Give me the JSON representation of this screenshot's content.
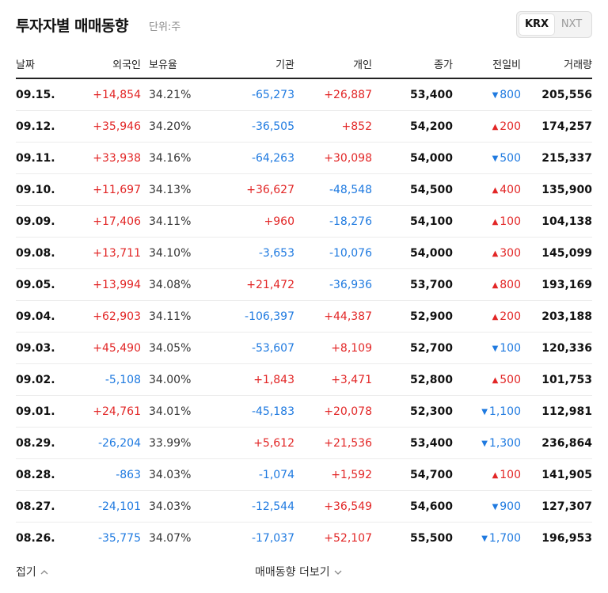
{
  "header": {
    "title": "투자자별 매매동향",
    "unit": "단위:주",
    "tabs": [
      {
        "label": "KRX",
        "active": true
      },
      {
        "label": "NXT",
        "active": false
      }
    ]
  },
  "columns": {
    "date": "날짜",
    "foreign": "외국인",
    "holding": "보유율",
    "inst": "기관",
    "indiv": "개인",
    "close": "종가",
    "change": "전일비",
    "volume": "거래량"
  },
  "colors": {
    "up": "#e22626",
    "down": "#1f7ae0"
  },
  "rows": [
    {
      "date": "09.15.",
      "foreign": "+14,854",
      "holding": "34.21%",
      "inst": "-65,273",
      "indiv": "+26,887",
      "close": "53,400",
      "change_dir": "down",
      "change": "800",
      "volume": "205,556"
    },
    {
      "date": "09.12.",
      "foreign": "+35,946",
      "holding": "34.20%",
      "inst": "-36,505",
      "indiv": "+852",
      "close": "54,200",
      "change_dir": "up",
      "change": "200",
      "volume": "174,257"
    },
    {
      "date": "09.11.",
      "foreign": "+33,938",
      "holding": "34.16%",
      "inst": "-64,263",
      "indiv": "+30,098",
      "close": "54,000",
      "change_dir": "down",
      "change": "500",
      "volume": "215,337"
    },
    {
      "date": "09.10.",
      "foreign": "+11,697",
      "holding": "34.13%",
      "inst": "+36,627",
      "indiv": "-48,548",
      "close": "54,500",
      "change_dir": "up",
      "change": "400",
      "volume": "135,900"
    },
    {
      "date": "09.09.",
      "foreign": "+17,406",
      "holding": "34.11%",
      "inst": "+960",
      "indiv": "-18,276",
      "close": "54,100",
      "change_dir": "up",
      "change": "100",
      "volume": "104,138"
    },
    {
      "date": "09.08.",
      "foreign": "+13,711",
      "holding": "34.10%",
      "inst": "-3,653",
      "indiv": "-10,076",
      "close": "54,000",
      "change_dir": "up",
      "change": "300",
      "volume": "145,099"
    },
    {
      "date": "09.05.",
      "foreign": "+13,994",
      "holding": "34.08%",
      "inst": "+21,472",
      "indiv": "-36,936",
      "close": "53,700",
      "change_dir": "up",
      "change": "800",
      "volume": "193,169"
    },
    {
      "date": "09.04.",
      "foreign": "+62,903",
      "holding": "34.11%",
      "inst": "-106,397",
      "indiv": "+44,387",
      "close": "52,900",
      "change_dir": "up",
      "change": "200",
      "volume": "203,188"
    },
    {
      "date": "09.03.",
      "foreign": "+45,490",
      "holding": "34.05%",
      "inst": "-53,607",
      "indiv": "+8,109",
      "close": "52,700",
      "change_dir": "down",
      "change": "100",
      "volume": "120,336"
    },
    {
      "date": "09.02.",
      "foreign": "-5,108",
      "holding": "34.00%",
      "inst": "+1,843",
      "indiv": "+3,471",
      "close": "52,800",
      "change_dir": "up",
      "change": "500",
      "volume": "101,753"
    },
    {
      "date": "09.01.",
      "foreign": "+24,761",
      "holding": "34.01%",
      "inst": "-45,183",
      "indiv": "+20,078",
      "close": "52,300",
      "change_dir": "down",
      "change": "1,100",
      "volume": "112,981"
    },
    {
      "date": "08.29.",
      "foreign": "-26,204",
      "holding": "33.99%",
      "inst": "+5,612",
      "indiv": "+21,536",
      "close": "53,400",
      "change_dir": "down",
      "change": "1,300",
      "volume": "236,864"
    },
    {
      "date": "08.28.",
      "foreign": "-863",
      "holding": "34.03%",
      "inst": "-1,074",
      "indiv": "+1,592",
      "close": "54,700",
      "change_dir": "up",
      "change": "100",
      "volume": "141,905"
    },
    {
      "date": "08.27.",
      "foreign": "-24,101",
      "holding": "34.03%",
      "inst": "-12,544",
      "indiv": "+36,549",
      "close": "54,600",
      "change_dir": "down",
      "change": "900",
      "volume": "127,307"
    },
    {
      "date": "08.26.",
      "foreign": "-35,775",
      "holding": "34.07%",
      "inst": "-17,037",
      "indiv": "+52,107",
      "close": "55,500",
      "change_dir": "down",
      "change": "1,700",
      "volume": "196,953"
    }
  ],
  "footer": {
    "fold_label": "접기",
    "more_label": "매매동향 더보기"
  }
}
